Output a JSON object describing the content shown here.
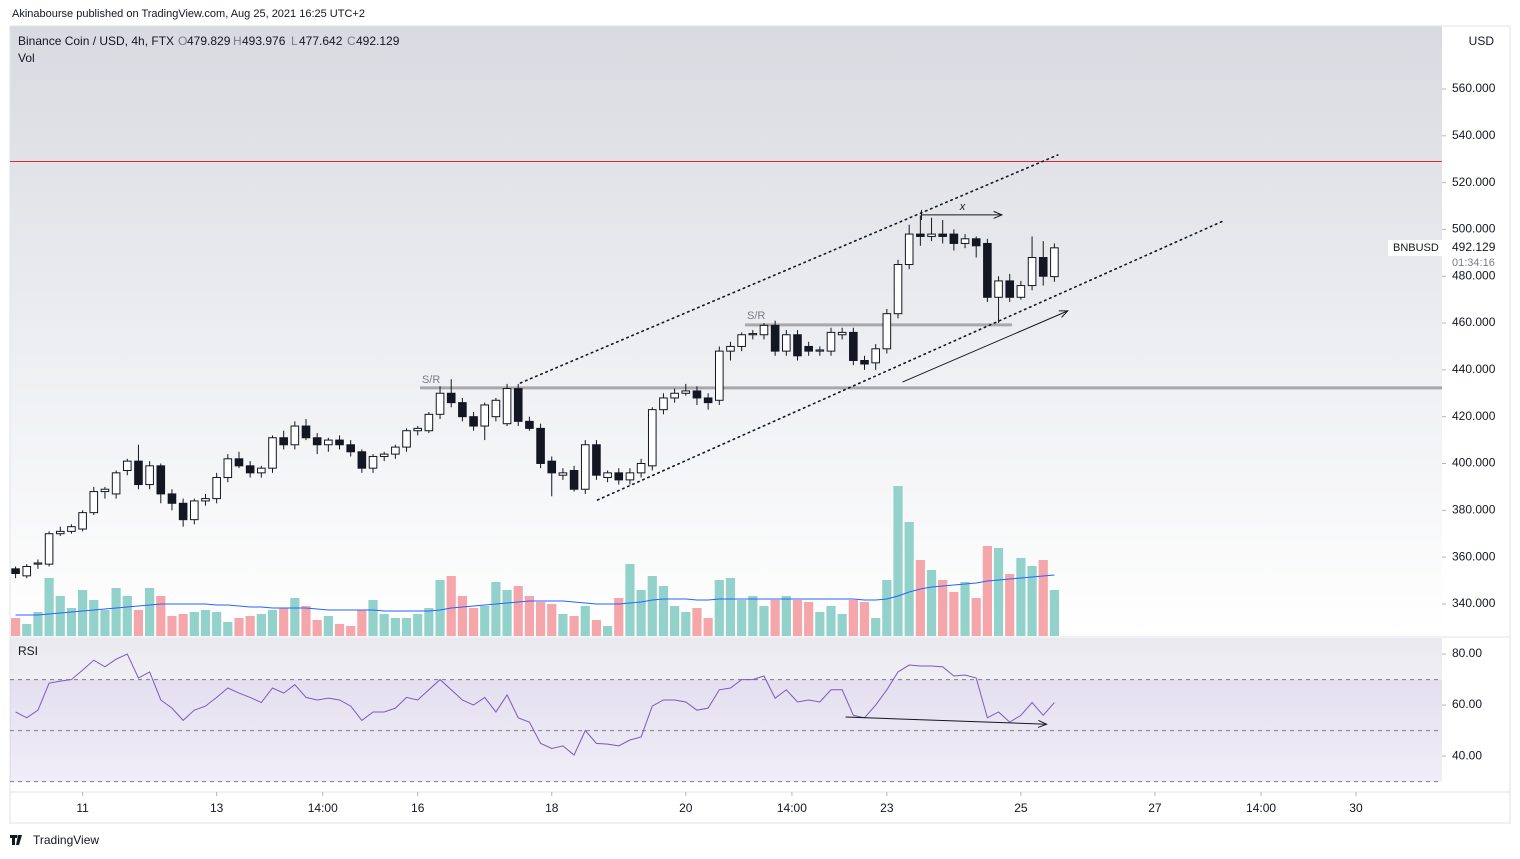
{
  "published": "Akinabourse published on TradingView.com, Aug 25, 2021 16:25 UTC+2",
  "footer": "TradingView",
  "chart_data": {
    "type": "candlestick",
    "title": "Binance Coin / USD, 4h, FTX",
    "ohlc_labels": [
      "O",
      "H",
      "L",
      "C"
    ],
    "currency": "USD",
    "symbol": "BNBUSD",
    "countdown": "01:34:16",
    "volume_label": "Vol",
    "rsi_label": "RSI",
    "up_color": "#ffffff",
    "down_color": "#131722",
    "vol_up_color": "#92d2ca",
    "vol_down_color": "#f5a6ab",
    "vol_ma_color": "#2962ff",
    "rsi_color": "#7e57c2",
    "resistance_color": "#d32f2f",
    "xlim": [
      -0.5,
      127.7
    ],
    "xticks": [
      {
        "value": 6,
        "label": "11"
      },
      {
        "value": 18,
        "label": "13"
      },
      {
        "value": 27.5,
        "label": "14:00"
      },
      {
        "value": 36,
        "label": "16"
      },
      {
        "value": 48,
        "label": "18"
      },
      {
        "value": 60,
        "label": "20"
      },
      {
        "value": 69.5,
        "label": "14:00"
      },
      {
        "value": 78,
        "label": "23"
      },
      {
        "value": 90,
        "label": "25"
      },
      {
        "value": 102,
        "label": "27"
      },
      {
        "value": 111.5,
        "label": "14:00"
      },
      {
        "value": 120,
        "label": "30"
      }
    ],
    "ylim": [
      326.3,
      586.9
    ],
    "yticks": [
      {
        "value": 340,
        "label": "340.000"
      },
      {
        "value": 360,
        "label": "360.000"
      },
      {
        "value": 380,
        "label": "380.000"
      },
      {
        "value": 400,
        "label": "400.000"
      },
      {
        "value": 420,
        "label": "420.000"
      },
      {
        "value": 440,
        "label": "440.000"
      },
      {
        "value": 460,
        "label": "460.000"
      },
      {
        "value": 480,
        "label": "480.000"
      },
      {
        "value": 500,
        "label": "500.000"
      },
      {
        "value": 520,
        "label": "520.000"
      },
      {
        "value": 540,
        "label": "540.000"
      },
      {
        "value": 560,
        "label": "560.000"
      }
    ],
    "ohlc": [
      [
        355,
        356,
        351,
        353
      ],
      [
        352,
        357,
        351,
        356
      ],
      [
        357,
        359,
        355,
        357.5
      ],
      [
        357,
        371,
        356,
        370
      ],
      [
        370,
        373,
        369,
        371
      ],
      [
        371,
        374,
        370,
        373
      ],
      [
        372,
        380,
        371,
        379
      ],
      [
        379,
        390,
        378,
        388
      ],
      [
        388,
        390,
        385,
        389
      ],
      [
        387,
        397,
        385,
        396
      ],
      [
        397,
        402,
        395,
        401
      ],
      [
        401,
        408,
        389,
        391
      ],
      [
        391,
        401,
        389,
        399
      ],
      [
        399,
        400,
        383,
        387
      ],
      [
        387,
        389,
        380,
        383
      ],
      [
        383,
        385,
        373,
        376
      ],
      [
        376,
        385,
        374,
        384
      ],
      [
        384,
        387,
        382,
        385
      ],
      [
        385,
        396,
        383,
        394
      ],
      [
        394,
        404,
        392,
        402
      ],
      [
        402,
        405,
        398,
        399
      ],
      [
        399,
        401,
        394,
        396
      ],
      [
        396,
        399,
        394,
        398
      ],
      [
        398,
        412,
        396,
        411
      ],
      [
        411,
        414,
        406,
        408
      ],
      [
        408,
        418,
        406,
        416
      ],
      [
        416,
        419,
        410,
        411
      ],
      [
        411,
        413,
        404,
        408
      ],
      [
        408,
        411,
        405,
        410
      ],
      [
        410,
        412,
        406,
        408
      ],
      [
        408,
        410,
        403,
        405
      ],
      [
        405,
        406,
        396,
        398
      ],
      [
        398,
        404,
        396,
        403
      ],
      [
        403,
        405,
        401,
        404
      ],
      [
        404,
        408,
        402,
        407
      ],
      [
        407,
        415,
        405,
        414
      ],
      [
        414,
        416,
        412,
        415
      ],
      [
        414,
        422,
        413,
        421
      ],
      [
        421,
        433,
        419,
        430
      ],
      [
        430,
        436,
        424,
        426
      ],
      [
        426,
        428,
        418,
        420
      ],
      [
        420,
        422,
        414,
        416
      ],
      [
        416,
        426,
        410,
        425
      ],
      [
        420,
        428,
        418,
        427
      ],
      [
        417,
        434,
        416,
        432
      ],
      [
        432,
        434,
        416,
        418
      ],
      [
        418,
        420,
        414,
        415
      ],
      [
        415,
        417,
        398,
        400
      ],
      [
        401,
        403,
        386,
        396
      ],
      [
        395,
        398,
        393,
        396
      ],
      [
        397,
        399,
        388,
        389
      ],
      [
        389,
        410,
        387,
        408
      ],
      [
        408,
        410,
        393,
        395
      ],
      [
        394,
        397,
        392,
        396
      ],
      [
        396,
        398,
        391,
        393
      ],
      [
        393,
        398,
        391,
        396
      ],
      [
        396,
        402,
        394,
        400
      ],
      [
        399,
        424,
        397,
        423
      ],
      [
        423,
        430,
        421,
        428
      ],
      [
        428,
        432,
        426,
        430
      ],
      [
        430,
        434,
        429,
        431
      ],
      [
        431,
        433,
        425,
        428
      ],
      [
        428,
        430,
        423,
        426
      ],
      [
        427,
        450,
        425,
        448
      ],
      [
        448,
        452,
        444,
        450
      ],
      [
        450,
        456,
        448,
        455
      ],
      [
        455,
        457,
        453,
        455.5
      ],
      [
        455,
        460,
        453,
        459
      ],
      [
        459,
        461,
        446,
        448
      ],
      [
        448,
        457,
        446,
        455
      ],
      [
        455,
        457,
        444,
        446
      ],
      [
        450,
        452,
        446,
        448
      ],
      [
        448,
        450,
        446,
        448.5
      ],
      [
        448,
        458,
        446,
        456
      ],
      [
        455,
        458,
        453,
        456
      ],
      [
        456,
        458,
        442,
        444
      ],
      [
        444,
        446,
        440,
        442.5
      ],
      [
        443,
        451,
        440,
        449
      ],
      [
        449,
        466,
        447,
        464
      ],
      [
        464,
        487,
        462,
        485
      ],
      [
        485,
        502,
        483,
        498
      ],
      [
        498,
        506,
        493,
        497
      ],
      [
        497,
        505,
        495,
        498
      ],
      [
        498,
        504,
        494,
        497
      ],
      [
        498,
        500,
        491,
        494
      ],
      [
        494,
        498,
        492,
        496
      ],
      [
        496,
        497,
        488,
        493
      ],
      [
        494,
        496,
        469,
        471
      ],
      [
        471,
        480,
        460,
        478
      ],
      [
        478,
        481,
        469,
        471
      ],
      [
        471,
        478,
        470,
        476
      ],
      [
        476,
        497,
        474,
        488
      ],
      [
        488,
        495,
        476,
        480
      ],
      [
        479.829,
        493.976,
        477.642,
        492.129
      ]
    ],
    "vlim": [
      0,
      610
    ],
    "volume": [
      18,
      12,
      24,
      58,
      40,
      28,
      46,
      36,
      26,
      48,
      40,
      26,
      48,
      40,
      20,
      22,
      24,
      26,
      24,
      14,
      18,
      20,
      22,
      26,
      28,
      38,
      30,
      16,
      20,
      12,
      10,
      26,
      36,
      22,
      18,
      18,
      22,
      28,
      56,
      60,
      40,
      28,
      30,
      54,
      46,
      50,
      40,
      34,
      32,
      22,
      20,
      30,
      16,
      10,
      38,
      72,
      46,
      60,
      50,
      30,
      24,
      28,
      18,
      56,
      58,
      36,
      40,
      30,
      36,
      40,
      36,
      34,
      24,
      30,
      22,
      36,
      34,
      18,
      56,
      150,
      114,
      76,
      66,
      56,
      44,
      54,
      38,
      90,
      88,
      62,
      78,
      70,
      76,
      46
    ],
    "volume_ma": [
      21,
      21,
      21,
      22,
      23,
      24,
      25,
      26,
      27,
      28,
      29,
      30,
      31,
      32,
      32,
      32,
      32,
      32,
      31,
      31,
      30,
      29,
      29,
      28,
      28,
      28,
      28,
      27,
      26,
      26,
      26,
      26,
      26,
      25,
      25,
      25,
      25,
      25,
      26,
      28,
      29,
      30,
      31,
      32,
      33,
      34,
      35,
      35,
      35,
      35,
      34,
      33,
      32,
      32,
      32,
      33,
      34,
      36,
      37,
      37,
      37,
      36,
      36,
      37,
      37,
      37,
      37,
      37,
      37,
      37,
      37,
      37,
      37,
      37,
      37,
      37,
      36,
      36,
      37,
      40,
      44,
      47,
      49,
      50,
      51,
      52,
      53,
      55,
      56,
      57,
      58,
      59,
      60,
      61
    ],
    "rsi_ylim": [
      26.7,
      86.3
    ],
    "rsi_ticks": [
      {
        "value": 40,
        "label": "40.00"
      },
      {
        "value": 60,
        "label": "60.00"
      },
      {
        "value": 80,
        "label": "80.00"
      }
    ],
    "rsi_levels": [
      70,
      50,
      30
    ],
    "rsi": [
      57.3,
      55,
      58,
      68.6,
      69.4,
      70,
      73.7,
      77.6,
      75,
      78,
      80,
      70.6,
      73,
      62,
      58.8,
      54,
      58,
      59.6,
      63,
      66.7,
      64.7,
      63,
      61,
      66.7,
      64.7,
      68,
      63,
      62,
      62.7,
      62,
      59.6,
      54,
      57.3,
      57.3,
      58.8,
      63,
      62,
      66,
      70,
      66,
      62,
      60,
      63,
      57.3,
      64,
      55,
      53.3,
      45,
      43,
      44,
      40.4,
      50,
      45,
      44.7,
      44,
      46.3,
      47.5,
      59.6,
      62,
      62,
      61.2,
      58,
      58.8,
      66,
      66.7,
      70,
      70,
      71.4,
      62.7,
      66,
      61.2,
      62,
      61.2,
      66,
      66,
      56,
      55,
      60,
      66,
      73,
      75.7,
      75.3,
      75.3,
      75,
      71.4,
      71.8,
      70.6,
      55,
      57.3,
      53.3,
      56,
      61,
      56,
      61
    ],
    "resistance": 529,
    "sr_label": "S/R",
    "x_label": "x",
    "levels": [
      [
        [
          36.2,
          432.3
        ],
        [
          127.7,
          432.3
        ]
      ],
      [
        [
          65.3,
          459.2
        ],
        [
          89.2,
          459.2
        ]
      ]
    ],
    "trendlines": [
      [
        [
          45.2,
          434.4
        ],
        [
          93.3,
          531.8
        ]
      ],
      [
        [
          52.1,
          384.4
        ],
        [
          108.3,
          504
        ]
      ]
    ],
    "arrows": [
      [
        [
          79.4,
          434.8
        ],
        [
          94.2,
          465.2
        ]
      ],
      [
        [
          81.1,
          506.2
        ],
        [
          88.3,
          506.2
        ]
      ]
    ],
    "rsi_arrow": [
      [
        74.3,
        55.3
      ],
      [
        92.3,
        52.5
      ]
    ]
  }
}
